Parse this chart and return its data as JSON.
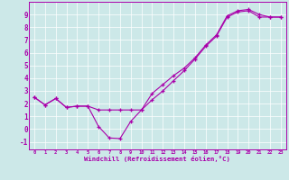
{
  "xlabel": "Windchill (Refroidissement éolien,°C)",
  "xlim": [
    -0.5,
    23.5
  ],
  "ylim": [
    -1.6,
    10.0
  ],
  "xticks": [
    0,
    1,
    2,
    3,
    4,
    5,
    6,
    7,
    8,
    9,
    10,
    11,
    12,
    13,
    14,
    15,
    16,
    17,
    18,
    19,
    20,
    21,
    22,
    23
  ],
  "yticks": [
    -1,
    0,
    1,
    2,
    3,
    4,
    5,
    6,
    7,
    8,
    9
  ],
  "background_color": "#cce8e8",
  "line_color": "#aa00aa",
  "line1_x": [
    0,
    1,
    2,
    3,
    4,
    5,
    6,
    7,
    8,
    9,
    10,
    11,
    12,
    13,
    14,
    15,
    16,
    17,
    18,
    19,
    20,
    21,
    22,
    23
  ],
  "line1_y": [
    2.5,
    1.9,
    2.4,
    1.7,
    1.8,
    1.8,
    0.2,
    -0.7,
    -0.75,
    0.6,
    1.5,
    2.3,
    3.0,
    3.8,
    4.6,
    5.5,
    6.5,
    7.3,
    8.8,
    9.2,
    9.3,
    8.8,
    8.8,
    8.8
  ],
  "line2_x": [
    0,
    1,
    2,
    3,
    4,
    5,
    6,
    7,
    8,
    9,
    10,
    11,
    12,
    13,
    14,
    15,
    16,
    17,
    18,
    19,
    20,
    21,
    22,
    23
  ],
  "line2_y": [
    2.5,
    1.9,
    2.4,
    1.7,
    1.8,
    1.8,
    1.5,
    1.5,
    1.5,
    1.5,
    1.5,
    2.8,
    3.5,
    4.2,
    4.8,
    5.6,
    6.6,
    7.4,
    8.9,
    9.3,
    9.4,
    9.0,
    8.8,
    8.8
  ]
}
